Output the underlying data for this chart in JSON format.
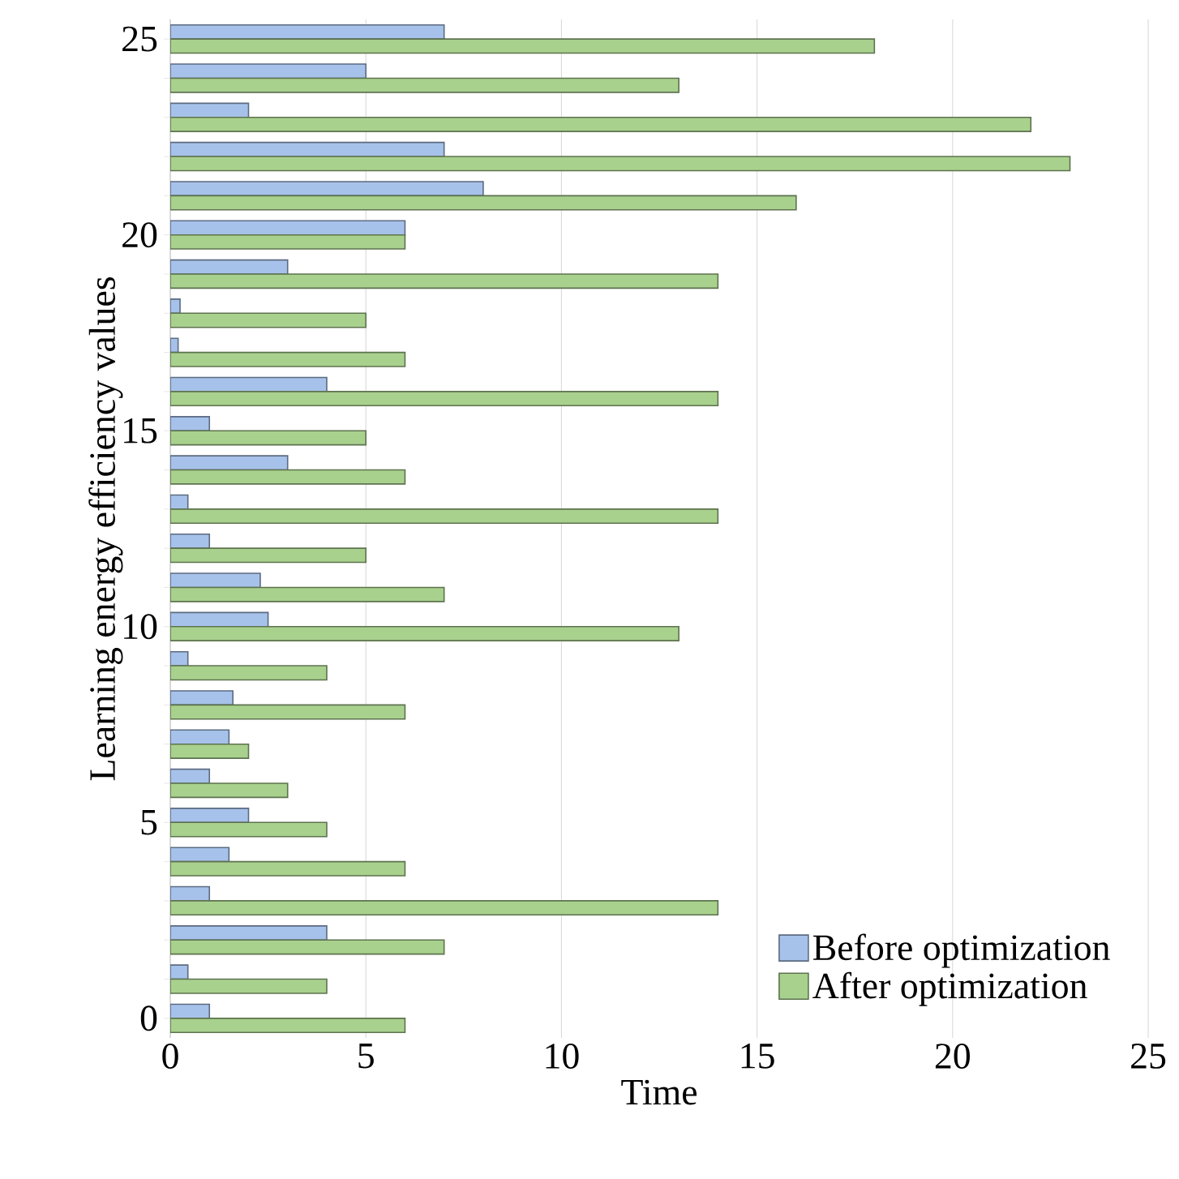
{
  "chart_data": {
    "type": "bar",
    "orientation": "horizontal",
    "xlabel": "Time",
    "ylabel": "Learning energy efficiency values",
    "categories": [
      "25",
      null,
      null,
      null,
      null,
      "20",
      null,
      null,
      null,
      null,
      "15",
      null,
      null,
      null,
      null,
      "10",
      null,
      null,
      null,
      null,
      "5",
      null,
      null,
      null,
      null,
      "0"
    ],
    "series": [
      {
        "name": "Before optimization",
        "color": "#a7c2ea",
        "values": [
          7,
          5,
          2,
          7,
          8,
          6,
          3,
          0.25,
          0.2,
          4,
          1,
          3,
          0.45,
          1,
          2.3,
          2.5,
          0.45,
          1.6,
          1.5,
          1,
          2,
          1.5,
          1,
          4,
          0.45,
          1
        ]
      },
      {
        "name": "After optimization",
        "color": "#a9d18e",
        "values": [
          18,
          13,
          22,
          23,
          16,
          6,
          14,
          5,
          6,
          14,
          5,
          6,
          14,
          5,
          7,
          13,
          4,
          6,
          2,
          3,
          4,
          6,
          14,
          7,
          4,
          6
        ]
      }
    ],
    "xlim": [
      0,
      25
    ],
    "xticks": [
      0,
      5,
      10,
      15,
      20,
      25
    ],
    "grid": "x",
    "legend": "bottom right"
  }
}
